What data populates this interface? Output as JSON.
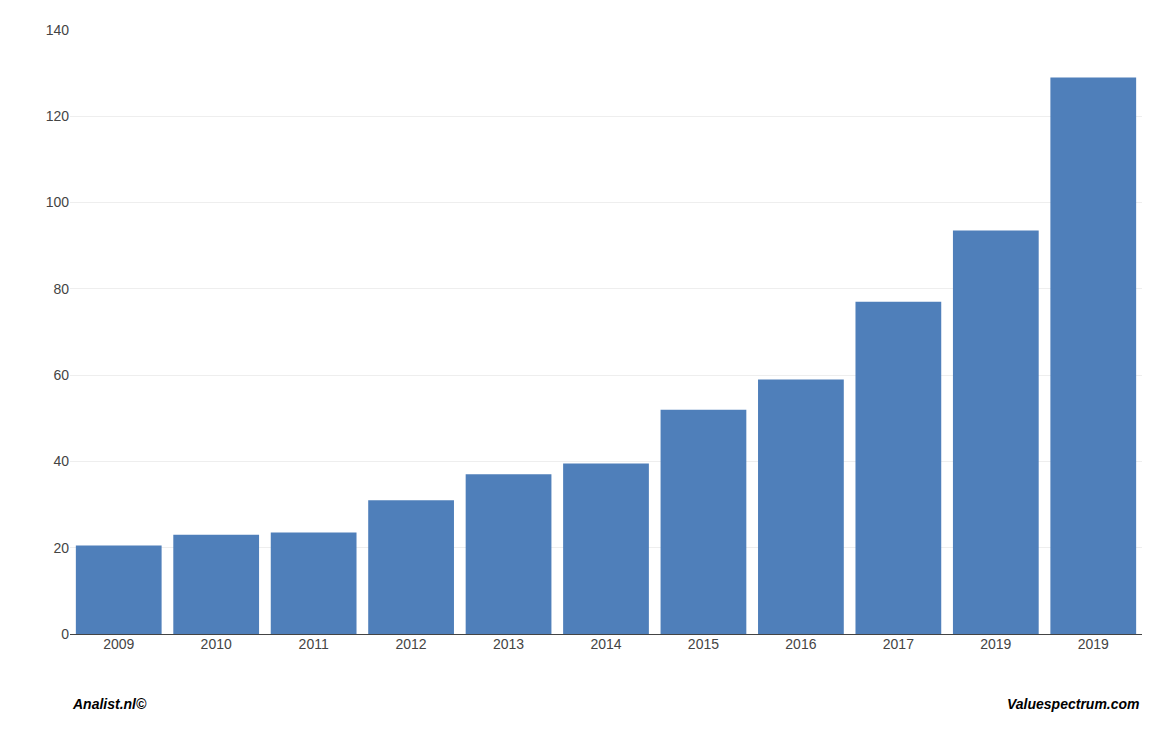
{
  "chart_data": {
    "type": "bar",
    "categories": [
      "2009",
      "2010",
      "2011",
      "2012",
      "2013",
      "2014",
      "2015",
      "2016",
      "2017",
      "2019",
      "2019"
    ],
    "values": [
      20.5,
      23.0,
      23.5,
      31.0,
      37.0,
      39.5,
      52.0,
      59.0,
      77.0,
      93.5,
      129.0
    ],
    "color": "#4f7fba",
    "ylim": [
      0,
      140
    ],
    "yticks": [
      0,
      20,
      40,
      60,
      80,
      100,
      120,
      140
    ],
    "grid": true,
    "annotations": [
      "Analist.nl©",
      "Valuespectrum.com"
    ]
  }
}
